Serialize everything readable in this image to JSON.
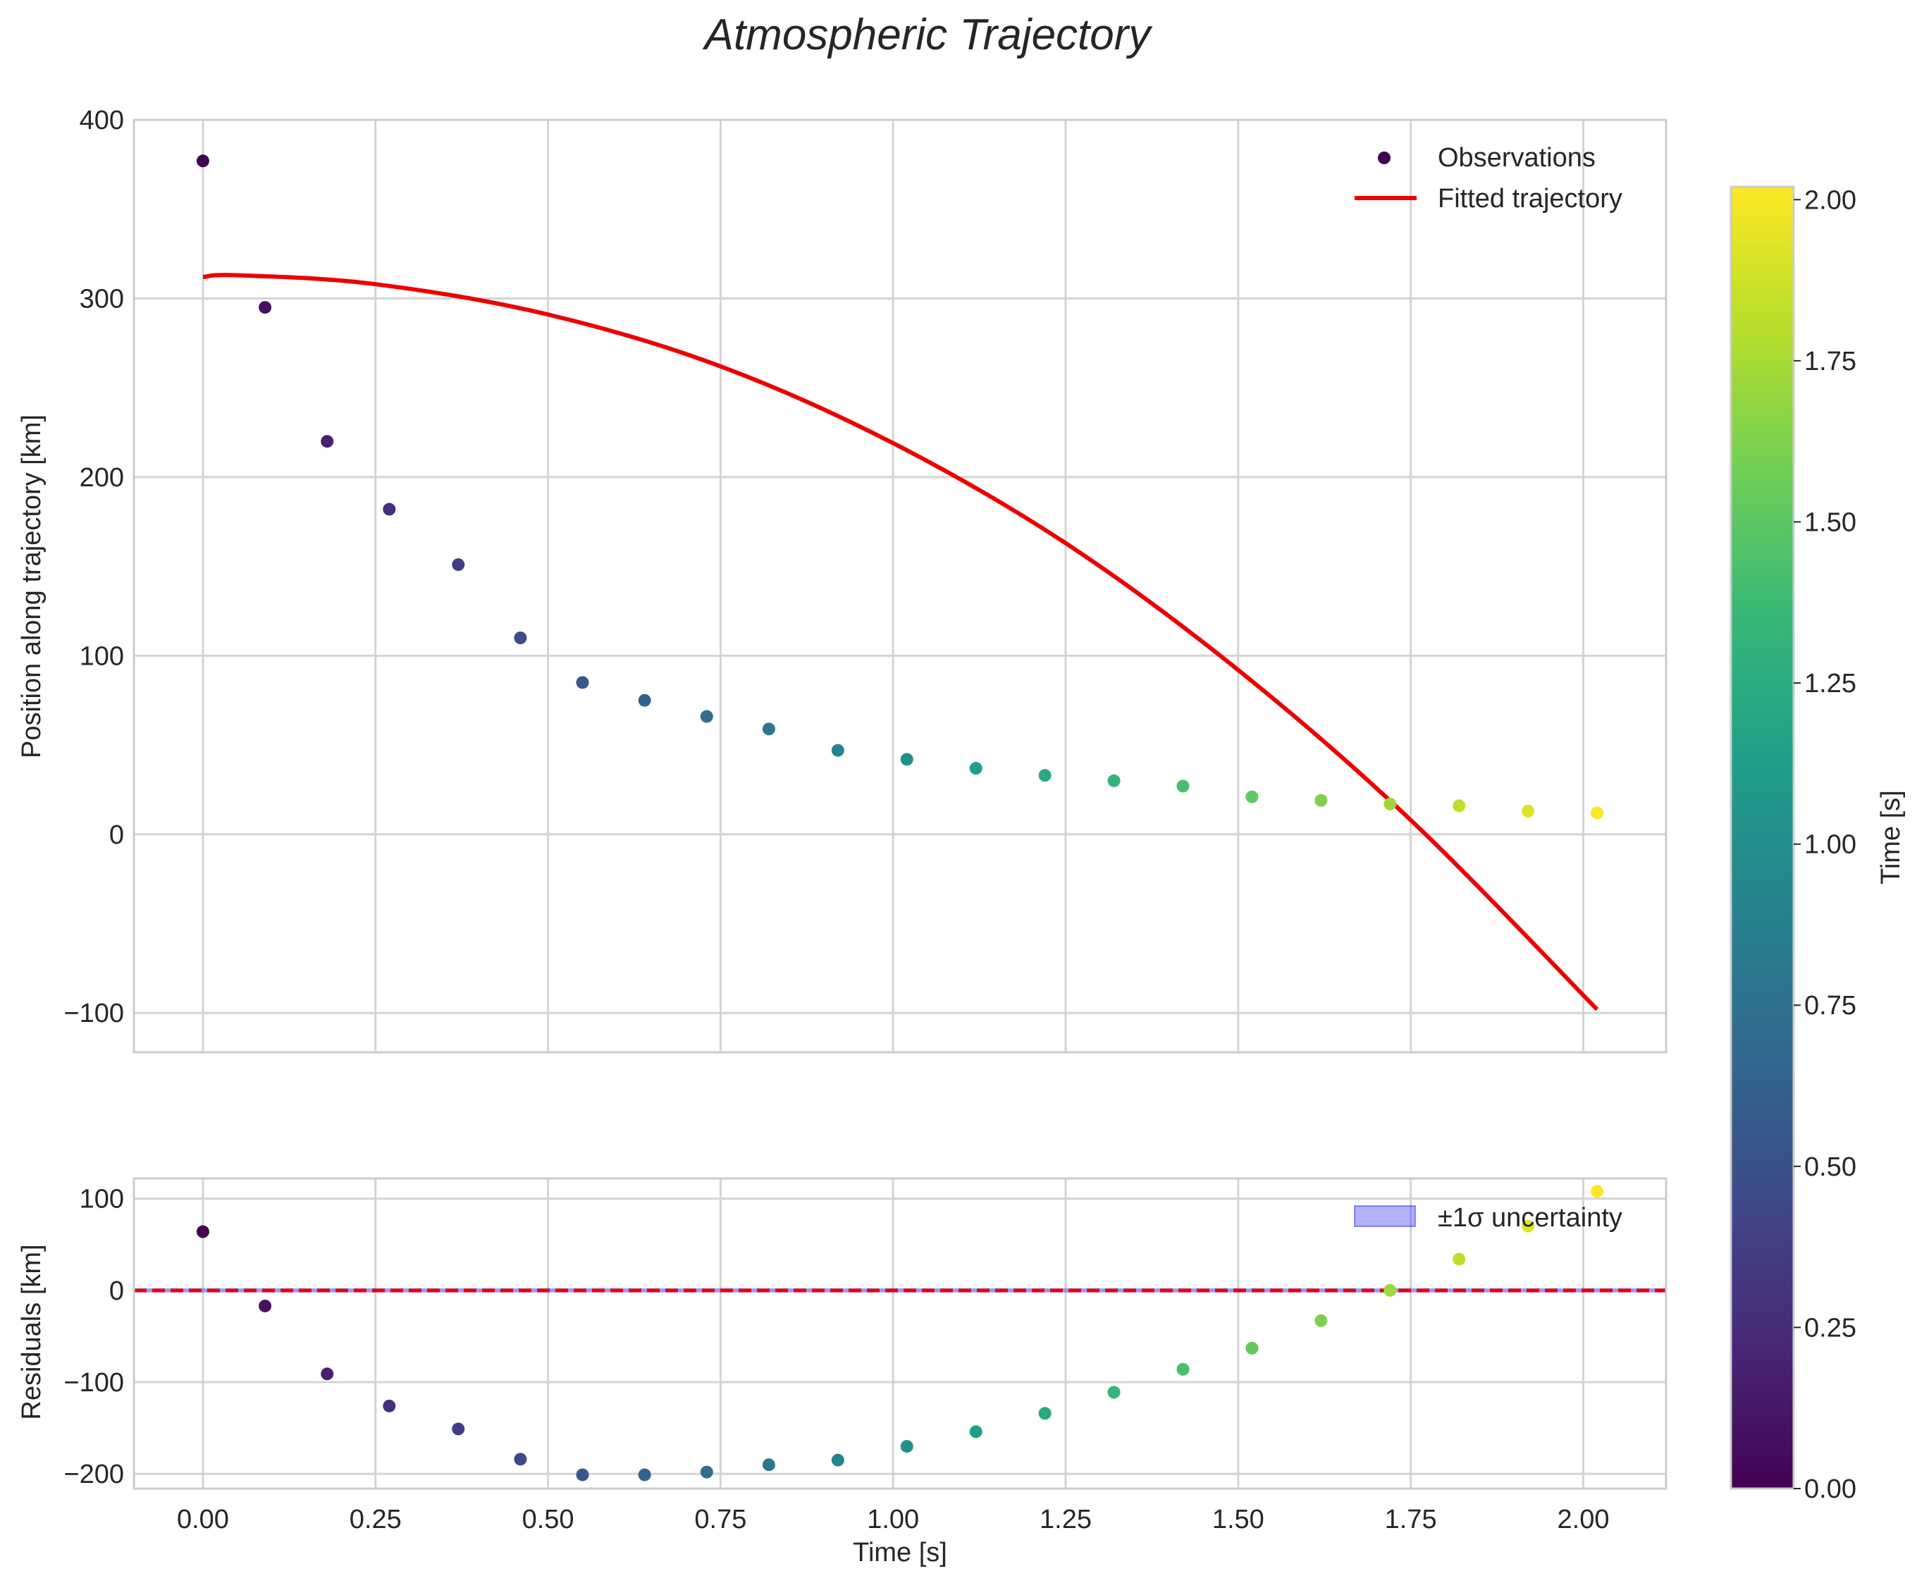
{
  "chart_data": [
    {
      "type": "scatter",
      "panel": "main",
      "title": "Atmospheric Trajectory",
      "xlabel": "",
      "ylabel": "Position along trajectory [km]",
      "xlim": [
        -0.1,
        2.12
      ],
      "ylim": [
        -122,
        400
      ],
      "xticks": [
        0.0,
        0.25,
        0.5,
        0.75,
        1.0,
        1.25,
        1.5,
        1.75,
        2.0
      ],
      "xtick_labels": [
        "0.00",
        "0.25",
        "0.50",
        "0.75",
        "1.00",
        "1.25",
        "1.50",
        "1.75",
        "2.00"
      ],
      "yticks": [
        -100,
        0,
        100,
        200,
        300,
        400
      ],
      "ytick_labels": [
        "−100",
        "0",
        "100",
        "200",
        "300",
        "400"
      ],
      "grid": true,
      "legend_position": "top-right",
      "series": [
        {
          "name": "Observations",
          "kind": "scatter",
          "color_by": "time",
          "x": [
            0.0,
            0.09,
            0.18,
            0.27,
            0.37,
            0.46,
            0.55,
            0.64,
            0.73,
            0.82,
            0.92,
            1.02,
            1.12,
            1.22,
            1.32,
            1.42,
            1.52,
            1.62,
            1.72,
            1.82,
            1.92,
            2.02
          ],
          "y": [
            377,
            295,
            220,
            182,
            151,
            110,
            85,
            75,
            66,
            59,
            47,
            42,
            37,
            33,
            30,
            27,
            21,
            19,
            17,
            16,
            13,
            12
          ]
        },
        {
          "name": "Fitted trajectory",
          "kind": "line",
          "color": "#ee0000",
          "model": "quadratic",
          "points_x": [
            0.0,
            0.05,
            0.25,
            0.5,
            0.75,
            1.0,
            1.25,
            1.5,
            1.75,
            2.02
          ],
          "points_y": [
            312,
            313,
            308,
            291,
            262,
            219,
            163,
            92,
            8,
            -98
          ]
        }
      ]
    },
    {
      "type": "scatter",
      "panel": "residuals",
      "xlabel": "Time [s]",
      "ylabel": "Residuals [km]",
      "xlim": [
        -0.1,
        2.12
      ],
      "ylim": [
        -216,
        122
      ],
      "xticks": [
        0.0,
        0.25,
        0.5,
        0.75,
        1.0,
        1.25,
        1.5,
        1.75,
        2.0
      ],
      "xtick_labels": [
        "0.00",
        "0.25",
        "0.50",
        "0.75",
        "1.00",
        "1.25",
        "1.50",
        "1.75",
        "2.00"
      ],
      "yticks": [
        -200,
        -100,
        0,
        100
      ],
      "ytick_labels": [
        "−200",
        "−100",
        "0",
        "100"
      ],
      "grid": true,
      "legend_position": "top-right",
      "reference_line": {
        "y": 0,
        "style": "dashed",
        "color": "#ee0000"
      },
      "series": [
        {
          "name": "Residuals",
          "kind": "scatter",
          "color_by": "time",
          "x": [
            0.0,
            0.09,
            0.18,
            0.27,
            0.37,
            0.46,
            0.55,
            0.64,
            0.73,
            0.82,
            0.92,
            1.02,
            1.12,
            1.22,
            1.32,
            1.42,
            1.52,
            1.62,
            1.72,
            1.82,
            1.92,
            2.02
          ],
          "y": [
            64,
            -17,
            -91,
            -126,
            -151,
            -184,
            -201,
            -201,
            -198,
            -190,
            -185,
            -170,
            -154,
            -134,
            -111,
            -86,
            -63,
            -33,
            0,
            34,
            70,
            108
          ]
        },
        {
          "name": "±1σ uncertainty",
          "kind": "band",
          "color": "#0000ff",
          "opacity": 0.3,
          "lower": -1,
          "upper": 1
        }
      ]
    },
    {
      "type": "colorbar",
      "label": "Time [s]",
      "colormap": "viridis",
      "range": [
        0.0,
        2.02
      ],
      "ticks": [
        0.0,
        0.25,
        0.5,
        0.75,
        1.0,
        1.25,
        1.5,
        1.75,
        2.0
      ],
      "tick_labels": [
        "0.00",
        "0.25",
        "0.50",
        "0.75",
        "1.00",
        "1.25",
        "1.50",
        "1.75",
        "2.00"
      ],
      "colors": [
        "#440154",
        "#482878",
        "#3e4989",
        "#31688e",
        "#26828e",
        "#1f9e89",
        "#35b779",
        "#6ece58",
        "#b5de2b",
        "#fde725"
      ]
    }
  ]
}
